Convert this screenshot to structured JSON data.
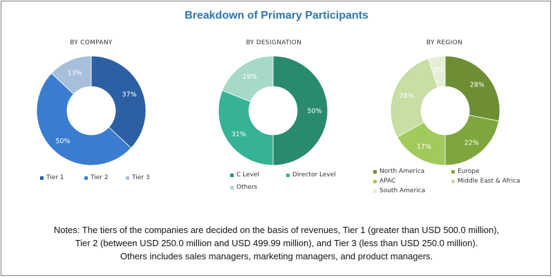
{
  "title": "Breakdown of Primary Participants",
  "chart_data": [
    {
      "type": "pie",
      "title": "BY COMPANY",
      "hole": true,
      "categories": [
        "Tier 1",
        "Tier 2",
        "Tier 3"
      ],
      "values": [
        37,
        50,
        13
      ],
      "labels": [
        "37%",
        "50%",
        "13%"
      ],
      "colors": [
        "#2d5fa3",
        "#3a7dd0",
        "#a8bfdc"
      ],
      "label_colors": [
        "#ffffff",
        "#ffffff",
        "#ffffff"
      ]
    },
    {
      "type": "pie",
      "title": "BY DESIGNATION",
      "hole": true,
      "categories": [
        "C Level",
        "Director Level",
        "Others"
      ],
      "values": [
        50,
        31,
        19
      ],
      "labels": [
        "50%",
        "31%",
        "19%"
      ],
      "colors": [
        "#2a8a6f",
        "#36b296",
        "#a6d9c8"
      ],
      "label_colors": [
        "#ffffff",
        "#ffffff",
        "#ffffff"
      ]
    },
    {
      "type": "pie",
      "title": "BY REGION",
      "hole": true,
      "categories": [
        "North America",
        "Europe",
        "APAC",
        "Middle East & Africa",
        "South America"
      ],
      "values": [
        28,
        22,
        17,
        28,
        5
      ],
      "labels": [
        "28%",
        "22%",
        "17%",
        "28%",
        "5%"
      ],
      "colors": [
        "#6e8e34",
        "#7fa63e",
        "#a2c95c",
        "#c7dea4",
        "#e6efd6"
      ],
      "label_colors": [
        "#ffffff",
        "#ffffff",
        "#ffffff",
        "#ffffff",
        "#ffffff"
      ]
    }
  ],
  "notes": {
    "line1": "Notes: The tiers of the companies are decided on the basis of revenues, Tier 1 (greater than USD 500.0 million),",
    "line2": "Tier 2 (between USD 250.0 million and USD 499.99 million), and Tier 3 (less than USD 250.0 million).",
    "line3": "Others includes sales managers, marketing managers, and product managers."
  }
}
